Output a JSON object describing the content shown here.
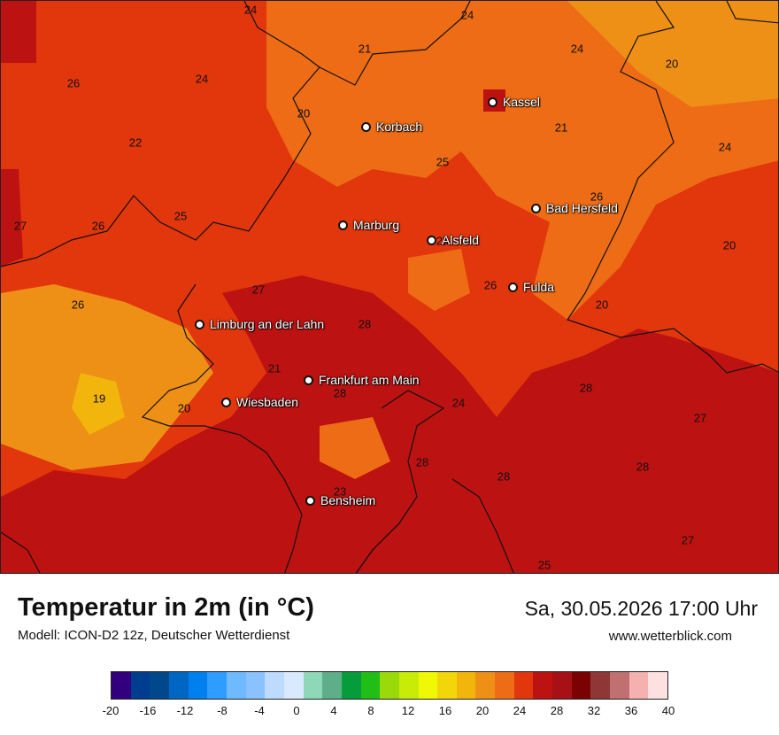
{
  "map": {
    "cities": [
      {
        "id": "kassel",
        "name": "Kassel"
      },
      {
        "id": "korbach",
        "name": "Korbach"
      },
      {
        "id": "bad-hersfeld",
        "name": "Bad Hersfeld"
      },
      {
        "id": "marburg",
        "name": "Marburg"
      },
      {
        "id": "alsfeld",
        "name": "Alsfeld"
      },
      {
        "id": "fulda",
        "name": "Fulda"
      },
      {
        "id": "limburg",
        "name": "Limburg an der Lahn"
      },
      {
        "id": "frankfurt",
        "name": "Frankfurt am Main"
      },
      {
        "id": "wiesbaden",
        "name": "Wiesbaden"
      },
      {
        "id": "bensheim",
        "name": "Bensheim"
      }
    ],
    "values": [
      "24",
      "24",
      "21",
      "24",
      "20",
      "26",
      "24",
      "20",
      "25",
      "21",
      "22",
      "24",
      "25",
      "27",
      "26",
      "25",
      "26",
      "20",
      "27",
      "28",
      "26",
      "26",
      "20",
      "21",
      "28",
      "19",
      "20",
      "24",
      "28",
      "27",
      "28",
      "28",
      "28",
      "23",
      "27",
      "25"
    ]
  },
  "title": "Temperatur in 2m (in °C)",
  "model": "Modell: ICON-D2 12z, Deutscher Wetterdienst",
  "datetime": "Sa, 30.05.2026 17:00 Uhr",
  "website": "www.wetterblick.com",
  "legend": {
    "colors": [
      "#32007f",
      "#003d8f",
      "#00478c",
      "#0066c4",
      "#0080ee",
      "#2f9cff",
      "#6fb9ff",
      "#8ac2ff",
      "#bcdbff",
      "#d9e9ff",
      "#8fd8b7",
      "#5fae8a",
      "#079c3b",
      "#20be16",
      "#9ada0a",
      "#c9eb08",
      "#f1f805",
      "#f2d60a",
      "#f1b50c",
      "#ee9016",
      "#ed6c15",
      "#e2360d",
      "#bc1212",
      "#a71014",
      "#7b0202",
      "#8f3737",
      "#c07070",
      "#f5b0b0",
      "#fde0e0"
    ],
    "ticks": [
      "-20",
      "-16",
      "-12",
      "-8",
      "-4",
      "0",
      "4",
      "8",
      "12",
      "16",
      "20",
      "24",
      "28",
      "32",
      "36",
      "40"
    ]
  }
}
